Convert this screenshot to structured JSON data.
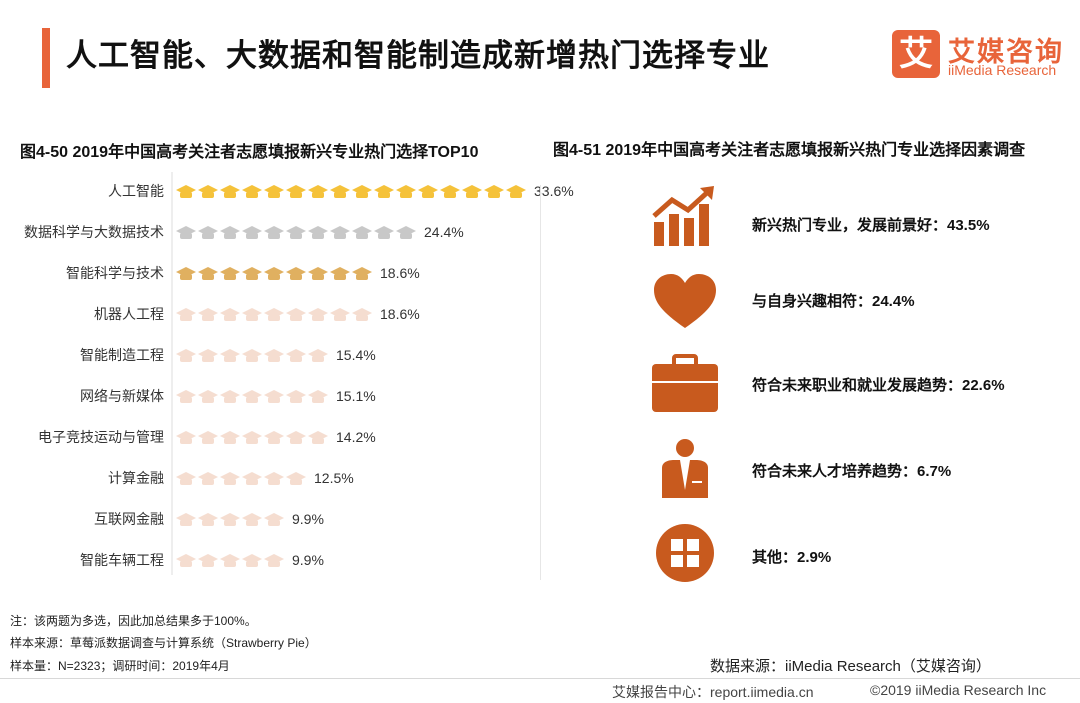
{
  "header": {
    "title": "人工智能、大数据和智能制造成新增热门选择专业",
    "brand_mark": "艾",
    "brand_name": "艾媒咨询",
    "brand_en": "iiMedia Research"
  },
  "chart_data": {
    "type": "bar",
    "orientation": "horizontal",
    "title": "图4-50 2019年中国高考关注者志愿填报新兴专业热门选择TOP10",
    "categories": [
      "人工智能",
      "数据科学与大数据技术",
      "智能科学与技术",
      "机器人工程",
      "智能制造工程",
      "网络与新媒体",
      "电子竞技运动与管理",
      "计算金融",
      "互联网金融",
      "智能车辆工程"
    ],
    "values": [
      33.6,
      24.4,
      18.6,
      18.6,
      15.4,
      15.1,
      14.2,
      12.5,
      9.9,
      9.9
    ],
    "value_labels": [
      "33.6%",
      "24.4%",
      "18.6%",
      "18.6%",
      "15.4%",
      "15.1%",
      "14.2%",
      "12.5%",
      "9.9%",
      "9.9%"
    ],
    "unit": "%",
    "xlim": [
      0,
      35
    ],
    "colors": [
      "#f5c23a",
      "#c8c8c8",
      "#e0b060",
      "#f5ddd0",
      "#f5ddd0",
      "#f5ddd0",
      "#f5ddd0",
      "#f5ddd0",
      "#f5ddd0",
      "#f5ddd0"
    ],
    "marker": "graduation-cap"
  },
  "factors": {
    "title": "图4-51 2019年中国高考关注者志愿填报新兴热门专业选择因素调查",
    "items": [
      {
        "label": "新兴热门专业，发展前景好：43.5%",
        "icon": "growth-chart-icon"
      },
      {
        "label": "与自身兴趣相符：24.4%",
        "icon": "heart-icon"
      },
      {
        "label": "符合未来职业和就业发展趋势：22.6%",
        "icon": "briefcase-icon"
      },
      {
        "label": "符合未来人才培养趋势：6.7%",
        "icon": "person-icon"
      },
      {
        "label": "其他：2.9%",
        "icon": "grid-circle-icon"
      }
    ],
    "icon_color": "#c85a1e"
  },
  "notes": {
    "note1": "注：该两题为多选，因此加总结果多于100%。",
    "note2": "样本来源：草莓派数据调查与计算系统（Strawberry Pie）",
    "note3": "样本量：N=2323；调研时间：2019年4月"
  },
  "source": "数据来源：iiMedia Research（艾媒咨询）",
  "footer": {
    "left": "艾媒报告中心：report.iimedia.cn",
    "right": "©2019  iiMedia Research  Inc"
  }
}
